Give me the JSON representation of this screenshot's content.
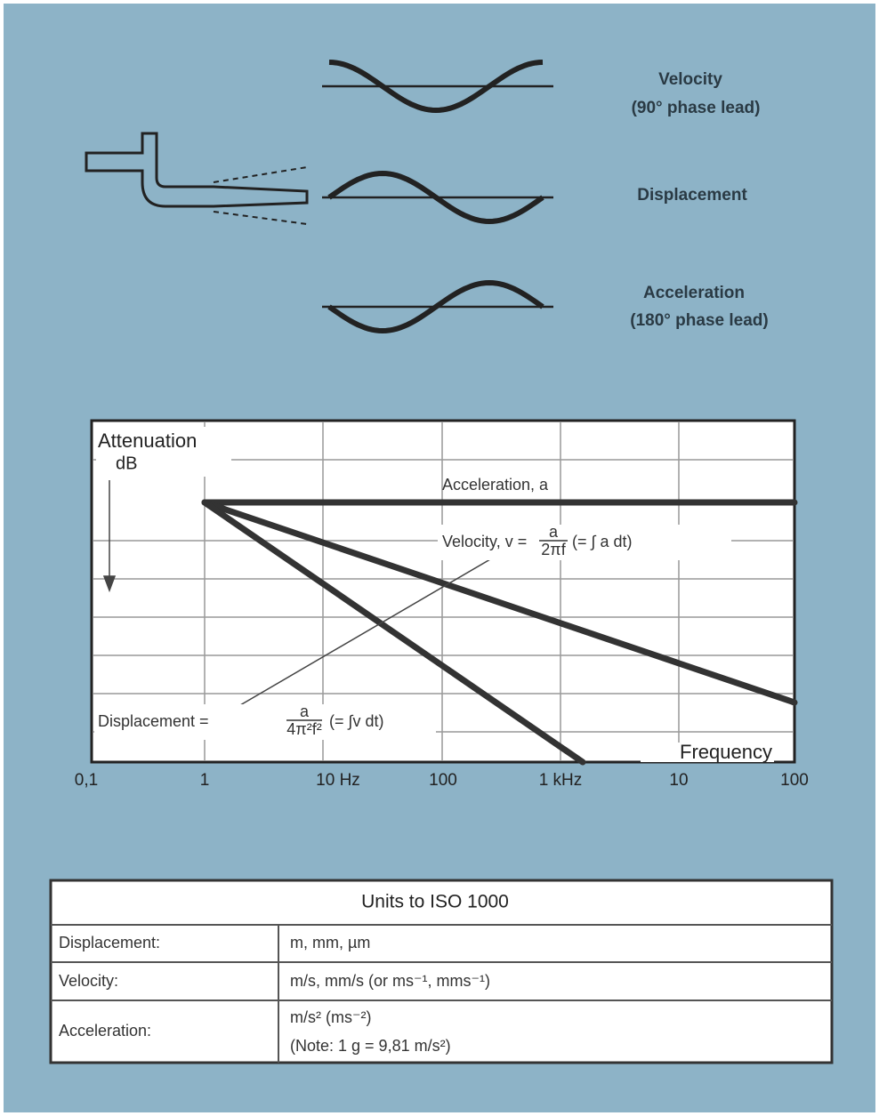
{
  "waves": [
    {
      "label": "Velocity",
      "note": "(90° phase lead)"
    },
    {
      "label": "Displacement"
    },
    {
      "label": "Acceleration",
      "note": "(180° phase lead)"
    }
  ],
  "chart": {
    "y_label": "Attenuation",
    "y_unit": "dB",
    "x_label": "Frequency",
    "x_ticks": [
      "0,1",
      "1",
      "10 Hz",
      "100",
      "1 kHz",
      "10",
      "100"
    ],
    "lines": [
      {
        "label": "Acceleration, a"
      },
      {
        "label": "Velocity, v =",
        "numerator": "a",
        "denominator": "2πf",
        "note": "(= ∫ a dt)"
      },
      {
        "label": "Displacement =",
        "numerator": "a",
        "denominator": "4π²f²",
        "note": "(= ∫v dt)"
      }
    ]
  },
  "table": {
    "title": "Units to ISO 1000",
    "rows": [
      [
        "Displacement:",
        "m, mm, µm"
      ],
      [
        "Velocity:",
        "m/s, mm/s (or ms⁻¹, mms⁻¹)"
      ],
      [
        "Acceleration:",
        "m/s² (ms⁻²)",
        "(Note: 1 g = 9,81 m/s²)"
      ]
    ]
  }
}
